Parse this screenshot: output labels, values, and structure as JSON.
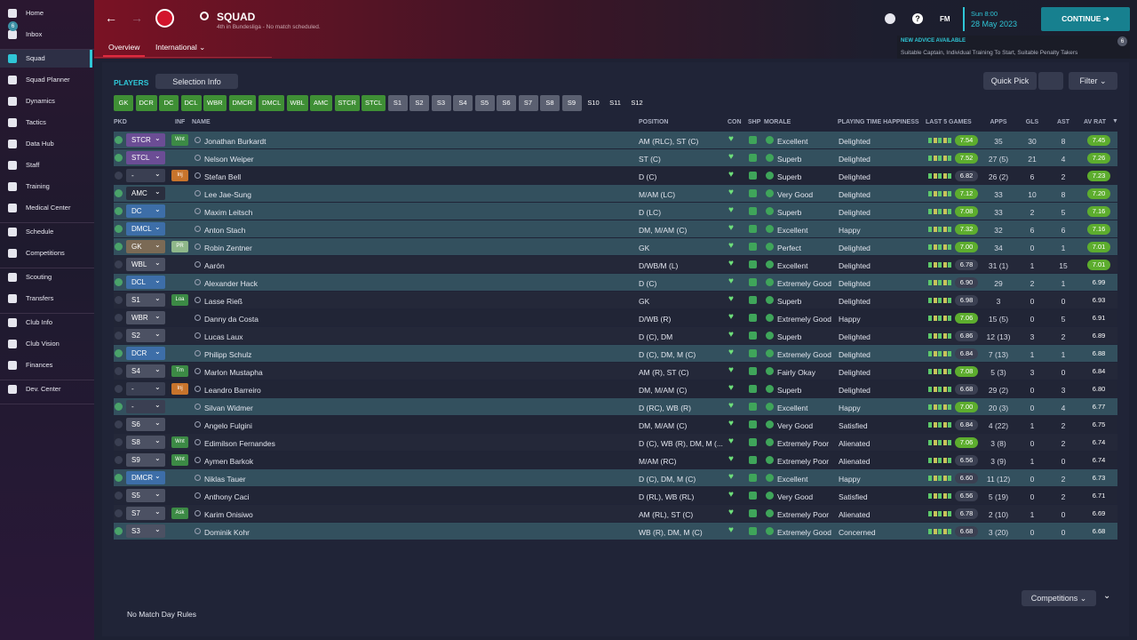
{
  "sidebar": {
    "groups": [
      [
        "Home",
        "Inbox"
      ],
      [
        "Squad",
        "Squad Planner",
        "Dynamics",
        "Tactics",
        "Data Hub",
        "Staff",
        "Training",
        "Medical Center"
      ],
      [
        "Schedule",
        "Competitions"
      ],
      [
        "Scouting",
        "Transfers"
      ],
      [
        "Club Info",
        "Club Vision",
        "Finances"
      ],
      [
        "Dev. Center"
      ]
    ],
    "inbox_badge": "6"
  },
  "header": {
    "title": "SQUAD",
    "subtitle": "4th in Bundesliga - No match scheduled.",
    "tabs": [
      "Overview",
      "International"
    ],
    "fm": "FM",
    "day_time": "Sun 8:00",
    "date": "28 May 2023",
    "continue": "CONTINUE",
    "advice_title": "NEW ADVICE AVAILABLE",
    "advice_text": "Suitable Captain, Individual Training To Start, Suitable Penalty Takers",
    "advice_badge": "6"
  },
  "toolbar": {
    "players": "PLAYERS",
    "selection_info": "Selection Info",
    "quick_pick": "Quick Pick",
    "filter": "Filter"
  },
  "filters": [
    {
      "label": "GK",
      "color": "#3f8f35"
    },
    {
      "label": "DCR",
      "color": "#3f8f35"
    },
    {
      "label": "DC",
      "color": "#3f8f35"
    },
    {
      "label": "DCL",
      "color": "#3f8f35"
    },
    {
      "label": "WBR",
      "color": "#3f8f35"
    },
    {
      "label": "DMCR",
      "color": "#3f8f35"
    },
    {
      "label": "DMCL",
      "color": "#3f8f35"
    },
    {
      "label": "WBL",
      "color": "#3f8f35"
    },
    {
      "label": "AMC",
      "color": "#3f8f35"
    },
    {
      "label": "STCR",
      "color": "#3f8f35"
    },
    {
      "label": "STCL",
      "color": "#3f8f35"
    },
    {
      "label": "S1",
      "color": "#5b6071"
    },
    {
      "label": "S2",
      "color": "#5b6071"
    },
    {
      "label": "S3",
      "color": "#5b6071"
    },
    {
      "label": "S4",
      "color": "#5b6071"
    },
    {
      "label": "S5",
      "color": "#5b6071"
    },
    {
      "label": "S6",
      "color": "#5b6071"
    },
    {
      "label": "S7",
      "color": "#5b6071"
    },
    {
      "label": "S8",
      "color": "#5b6071"
    },
    {
      "label": "S9",
      "color": "#5b6071"
    },
    {
      "label": "S10",
      "color": "#202437"
    },
    {
      "label": "S11",
      "color": "#202437"
    },
    {
      "label": "S12",
      "color": "#202437"
    }
  ],
  "table": {
    "columns": [
      "PKD",
      "INF",
      "NAME",
      "POSITION",
      "CON",
      "SHP",
      "MORALE",
      "PLAYING TIME HAPPINESS",
      "LAST 5 GAMES",
      "APPS",
      "GLS",
      "AST",
      "AV RAT"
    ],
    "rows": [
      {
        "pkd": "STCR",
        "color": "#6b4d95",
        "inf": "Wnt",
        "inf_color": "#3c8a45",
        "name": "Jonathan Burkardt",
        "position": "AM (RLC), ST (C)",
        "morale": "Excellent",
        "happiness": "Delighted",
        "last5": "7.54",
        "apps": "35",
        "gls": 30,
        "ast": 8,
        "avrat": "7.45",
        "selected": true
      },
      {
        "pkd": "STCL",
        "color": "#6b4d95",
        "name": "Nelson Weiper",
        "position": "ST (C)",
        "morale": "Superb",
        "happiness": "Delighted",
        "last5": "7.52",
        "apps": "27 (5)",
        "gls": 21,
        "ast": 4,
        "avrat": "7.26",
        "selected": true
      },
      {
        "pkd": "-",
        "color": "#3a3f52",
        "inf": "Inj",
        "inf_color": "#c8742c",
        "name": "Stefan Bell",
        "position": "D (C)",
        "morale": "Superb",
        "happiness": "Delighted",
        "last5": "6.82",
        "apps": "26 (2)",
        "gls": 6,
        "ast": 2,
        "avrat": "7.23",
        "selected": false
      },
      {
        "pkd": "AMC",
        "color": "#2a2e3e",
        "name": "Lee Jae-Sung",
        "position": "M/AM (LC)",
        "morale": "Very Good",
        "happiness": "Delighted",
        "last5": "7.12",
        "apps": "33",
        "gls": 10,
        "ast": 8,
        "avrat": "7.20",
        "selected": true
      },
      {
        "pkd": "DC",
        "color": "#3d6ea8",
        "name": "Maxim Leitsch",
        "position": "D (LC)",
        "morale": "Superb",
        "happiness": "Delighted",
        "last5": "7.08",
        "apps": "33",
        "gls": 2,
        "ast": 5,
        "avrat": "7.16",
        "selected": true
      },
      {
        "pkd": "DMCL",
        "color": "#3d6ea8",
        "name": "Anton Stach",
        "position": "DM, M/AM (C)",
        "morale": "Excellent",
        "happiness": "Happy",
        "last5": "7.32",
        "apps": "32",
        "gls": 6,
        "ast": 6,
        "avrat": "7.16",
        "selected": true
      },
      {
        "pkd": "GK",
        "color": "#7b6a55",
        "inf": "PR",
        "inf_color": "#8fb88a",
        "name": "Robin Zentner",
        "position": "GK",
        "morale": "Perfect",
        "happiness": "Delighted",
        "last5": "7.00",
        "apps": "34",
        "gls": 0,
        "ast": 1,
        "avrat": "7.01",
        "selected": true
      },
      {
        "pkd": "WBL",
        "color": "#4c5163",
        "name": "Aarón",
        "position": "D/WB/M (L)",
        "morale": "Excellent",
        "happiness": "Delighted",
        "last5": "6.78",
        "apps": "31 (1)",
        "gls": 1,
        "ast": 15,
        "avrat": "7.01",
        "selected": false
      },
      {
        "pkd": "DCL",
        "color": "#3d6ea8",
        "name": "Alexander Hack",
        "position": "D (C)",
        "morale": "Extremely Good",
        "happiness": "Delighted",
        "last5": "6.90",
        "apps": "29",
        "gls": 2,
        "ast": 1,
        "avrat": "6.99",
        "selected": true
      },
      {
        "pkd": "S1",
        "color": "#4c5163",
        "inf": "Loa",
        "inf_color": "#3c8a45",
        "name": "Lasse Rieß",
        "position": "GK",
        "morale": "Superb",
        "happiness": "Delighted",
        "last5": "6.98",
        "apps": "3",
        "gls": 0,
        "ast": 0,
        "avrat": "6.93",
        "selected": false
      },
      {
        "pkd": "WBR",
        "color": "#4c5163",
        "name": "Danny da Costa",
        "position": "D/WB (R)",
        "morale": "Extremely Good",
        "happiness": "Happy",
        "last5": "7.06",
        "apps": "15 (5)",
        "gls": 0,
        "ast": 5,
        "avrat": "6.91",
        "selected": false
      },
      {
        "pkd": "S2",
        "color": "#4c5163",
        "name": "Lucas Laux",
        "position": "D (C), DM",
        "morale": "Superb",
        "happiness": "Delighted",
        "last5": "6.86",
        "apps": "12 (13)",
        "gls": 3,
        "ast": 2,
        "avrat": "6.89",
        "selected": false
      },
      {
        "pkd": "DCR",
        "color": "#3d6ea8",
        "name": "Philipp Schulz",
        "position": "D (C), DM, M (C)",
        "morale": "Extremely Good",
        "happiness": "Delighted",
        "last5": "6.84",
        "apps": "7 (13)",
        "gls": 1,
        "ast": 1,
        "avrat": "6.88",
        "selected": true
      },
      {
        "pkd": "S4",
        "color": "#4c5163",
        "inf": "Tm",
        "inf_color": "#3c8a45",
        "name": "Marlon Mustapha",
        "position": "AM (R), ST (C)",
        "morale": "Fairly Okay",
        "happiness": "Delighted",
        "last5": "7.08",
        "apps": "5 (3)",
        "gls": 3,
        "ast": 0,
        "avrat": "6.84",
        "selected": false
      },
      {
        "pkd": "-",
        "color": "#3a3f52",
        "inf": "Inj",
        "inf_color": "#c8742c",
        "name": "Leandro Barreiro",
        "position": "DM, M/AM (C)",
        "morale": "Superb",
        "happiness": "Delighted",
        "last5": "6.68",
        "apps": "29 (2)",
        "gls": 0,
        "ast": 3,
        "avrat": "6.80",
        "selected": false
      },
      {
        "pkd": "-",
        "color": "#3a3f52",
        "name": "Silvan Widmer",
        "position": "D (RC), WB (R)",
        "morale": "Excellent",
        "happiness": "Happy",
        "last5": "7.00",
        "apps": "20 (3)",
        "gls": 0,
        "ast": 4,
        "avrat": "6.77",
        "selected": true
      },
      {
        "pkd": "S6",
        "color": "#4c5163",
        "name": "Angelo Fulgini",
        "position": "DM, M/AM (C)",
        "morale": "Very Good",
        "happiness": "Satisfied",
        "last5": "6.84",
        "apps": "4 (22)",
        "gls": 1,
        "ast": 2,
        "avrat": "6.75",
        "selected": false
      },
      {
        "pkd": "S8",
        "color": "#4c5163",
        "inf": "Wnt",
        "inf_color": "#3c8a45",
        "name": "Edimilson Fernandes",
        "position": "D (C), WB (R), DM, M (...",
        "morale": "Extremely Poor",
        "happiness": "Alienated",
        "last5": "7.06",
        "apps": "3 (8)",
        "gls": 0,
        "ast": 2,
        "avrat": "6.74",
        "selected": false
      },
      {
        "pkd": "S9",
        "color": "#4c5163",
        "inf": "Wnt",
        "inf_color": "#3c8a45",
        "name": "Aymen Barkok",
        "position": "M/AM (RC)",
        "morale": "Extremely Poor",
        "happiness": "Alienated",
        "last5": "6.56",
        "apps": "3 (9)",
        "gls": 1,
        "ast": 0,
        "avrat": "6.74",
        "selected": false
      },
      {
        "pkd": "DMCR",
        "color": "#3d6ea8",
        "name": "Niklas Tauer",
        "position": "D (C), DM, M (C)",
        "morale": "Excellent",
        "happiness": "Happy",
        "last5": "6.60",
        "apps": "11 (12)",
        "gls": 0,
        "ast": 2,
        "avrat": "6.73",
        "selected": true
      },
      {
        "pkd": "S5",
        "color": "#4c5163",
        "name": "Anthony Caci",
        "position": "D (RL), WB (RL)",
        "morale": "Very Good",
        "happiness": "Satisfied",
        "last5": "6.56",
        "apps": "5 (19)",
        "gls": 0,
        "ast": 2,
        "avrat": "6.71",
        "selected": false
      },
      {
        "pkd": "S7",
        "color": "#4c5163",
        "inf": "Ask",
        "inf_color": "#3c8a45",
        "name": "Karim Onisiwo",
        "position": "AM (RL), ST (C)",
        "morale": "Extremely Poor",
        "happiness": "Alienated",
        "last5": "6.78",
        "apps": "2 (10)",
        "gls": 1,
        "ast": 0,
        "avrat": "6.69",
        "selected": false
      },
      {
        "pkd": "S3",
        "color": "#4c5163",
        "name": "Dominik Kohr",
        "position": "WB (R), DM, M (C)",
        "morale": "Extremely Good",
        "happiness": "Concerned",
        "last5": "6.68",
        "apps": "3 (20)",
        "gls": 0,
        "ast": 0,
        "avrat": "6.68",
        "selected": true
      }
    ]
  },
  "footer": {
    "rules": "No Match Day Rules",
    "competitions": "Competitions"
  }
}
